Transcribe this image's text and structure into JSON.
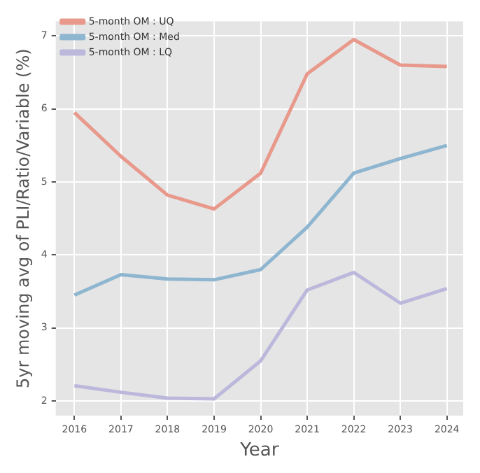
{
  "chart_data": {
    "type": "line",
    "xlabel": "Year",
    "ylabel": "5yr moving avg of PLI/Ratio/Variable (%)",
    "x": [
      2016,
      2017,
      2018,
      2019,
      2020,
      2021,
      2022,
      2023,
      2024
    ],
    "series": [
      {
        "name": "5-month OM : UQ",
        "color": "#e8998b",
        "values": [
          5.95,
          5.35,
          4.82,
          4.63,
          5.12,
          6.48,
          6.95,
          6.6,
          6.58
        ]
      },
      {
        "name": "5-month OM : Med",
        "color": "#8fb6d0",
        "values": [
          3.45,
          3.73,
          3.67,
          3.66,
          3.8,
          4.38,
          5.12,
          5.32,
          5.5
        ]
      },
      {
        "name": "5-month OM : LQ",
        "color": "#bcb8dc",
        "values": [
          2.21,
          2.12,
          2.04,
          2.03,
          2.55,
          3.52,
          3.76,
          3.34,
          3.54
        ]
      }
    ],
    "xlim": [
      2015.6,
      2024.35
    ],
    "xticks": [
      2016,
      2017,
      2018,
      2019,
      2020,
      2021,
      2022,
      2023,
      2024
    ],
    "ylim": [
      1.8,
      7.2
    ],
    "yticks": [
      2,
      3,
      4,
      5,
      6,
      7
    ],
    "grid": true,
    "legend": "top left",
    "marker": "none",
    "line_style": "solid"
  }
}
